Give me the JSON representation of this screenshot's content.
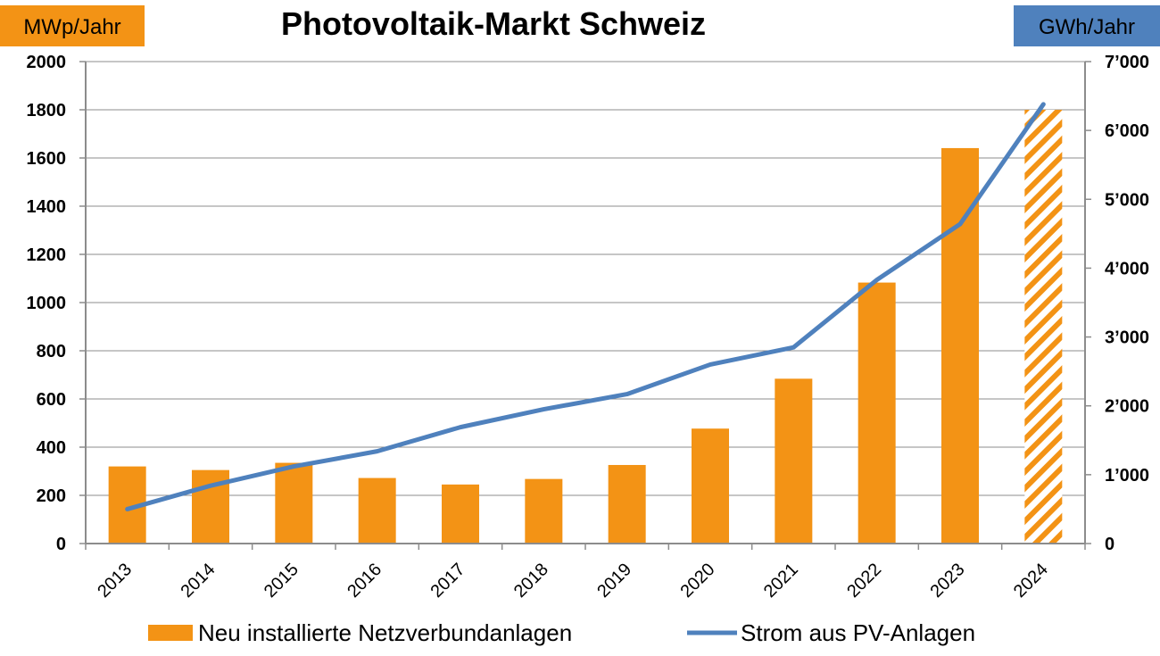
{
  "chart_data": {
    "type": "bar",
    "title": "Photovoltaik-Markt Schweiz",
    "left_unit_label": "MWp/Jahr",
    "right_unit_label": "GWh/Jahr",
    "categories": [
      "2013",
      "2014",
      "2015",
      "2016",
      "2017",
      "2018",
      "2019",
      "2020",
      "2021",
      "2022",
      "2023",
      "2024"
    ],
    "left_axis": {
      "range": [
        0,
        2000
      ],
      "ticks": [
        "0",
        "200",
        "400",
        "600",
        "800",
        "1000",
        "1200",
        "1400",
        "1600",
        "1800",
        "2000"
      ],
      "tick_values": [
        0,
        200,
        400,
        600,
        800,
        1000,
        1200,
        1400,
        1600,
        1800,
        2000
      ]
    },
    "right_axis": {
      "range": [
        0,
        7000
      ],
      "ticks": [
        "0",
        "1’000",
        "2’000",
        "3’000",
        "4’000",
        "5’000",
        "6’000",
        "7’000"
      ],
      "tick_values": [
        0,
        1000,
        2000,
        3000,
        4000,
        5000,
        6000,
        7000
      ]
    },
    "grid": true,
    "legend_position": "bottom",
    "series": [
      {
        "name": "Neu installierte Netzverbundanlagen",
        "type": "bar",
        "axis": "left",
        "color": "#F39315",
        "values": [
          320,
          305,
          335,
          272,
          245,
          268,
          326,
          477,
          684,
          1083,
          1641,
          1800
        ],
        "hatched": [
          false,
          false,
          false,
          false,
          false,
          false,
          false,
          false,
          false,
          false,
          false,
          true
        ]
      },
      {
        "name": "Strom aus PV-Anlagen",
        "type": "line",
        "axis": "right",
        "color": "#4F81BD",
        "values": [
          500,
          840,
          1120,
          1340,
          1690,
          1950,
          2170,
          2600,
          2850,
          3830,
          4640,
          6380
        ]
      }
    ]
  }
}
